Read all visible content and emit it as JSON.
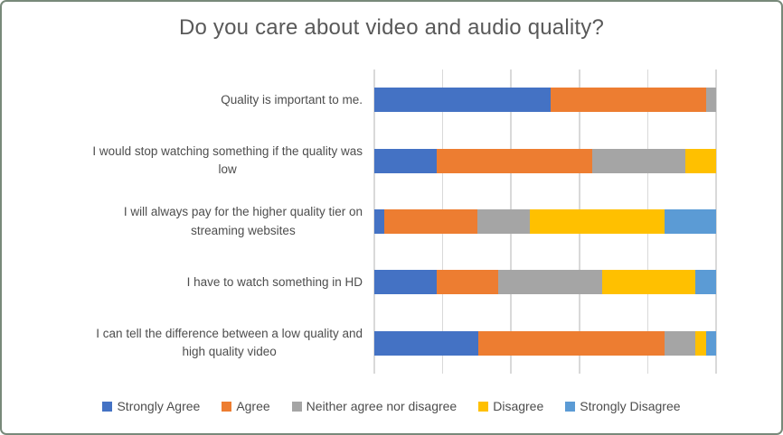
{
  "chart_data": {
    "type": "bar",
    "orientation": "horizontal",
    "stacked": "100%",
    "title": "Do you care about video and audio quality?",
    "categories": [
      "Quality is important to me.",
      "I would stop watching something if the quality was\nlow",
      "I will always pay for the higher quality tier on\nstreaming websites",
      "I have to watch something in HD",
      "I can tell the difference between a low quality and\nhigh quality video"
    ],
    "series": [
      {
        "name": "Strongly Agree",
        "color": "#4472C4",
        "values": [
          51.5,
          18.2,
          3.0,
          18.2,
          30.3
        ]
      },
      {
        "name": "Agree",
        "color": "#ED7D31",
        "values": [
          45.5,
          45.5,
          27.3,
          18.2,
          54.5
        ]
      },
      {
        "name": "Neither agree nor disagree",
        "color": "#A5A5A5",
        "values": [
          3.0,
          27.3,
          15.2,
          30.3,
          9.1
        ]
      },
      {
        "name": "Disagree",
        "color": "#FFC000",
        "values": [
          0,
          9.1,
          39.4,
          27.3,
          3.0
        ]
      },
      {
        "name": "Strongly Disagree",
        "color": "#5B9BD5",
        "values": [
          0,
          0,
          15.2,
          6.1,
          3.0
        ]
      }
    ],
    "values_unit": "percent of responses (estimated from bar lengths)",
    "x_axis": {
      "min": 0,
      "max": 100,
      "gridline_step": 20,
      "tick_labels_visible": false
    },
    "grid": "vertical gridlines on",
    "legend_position": "bottom"
  },
  "colors": {
    "background": "#ffffff",
    "frame_border": "#78897a",
    "gridline": "#d9d9d9",
    "title_text": "#595959",
    "label_text": "#4d4d4d"
  }
}
